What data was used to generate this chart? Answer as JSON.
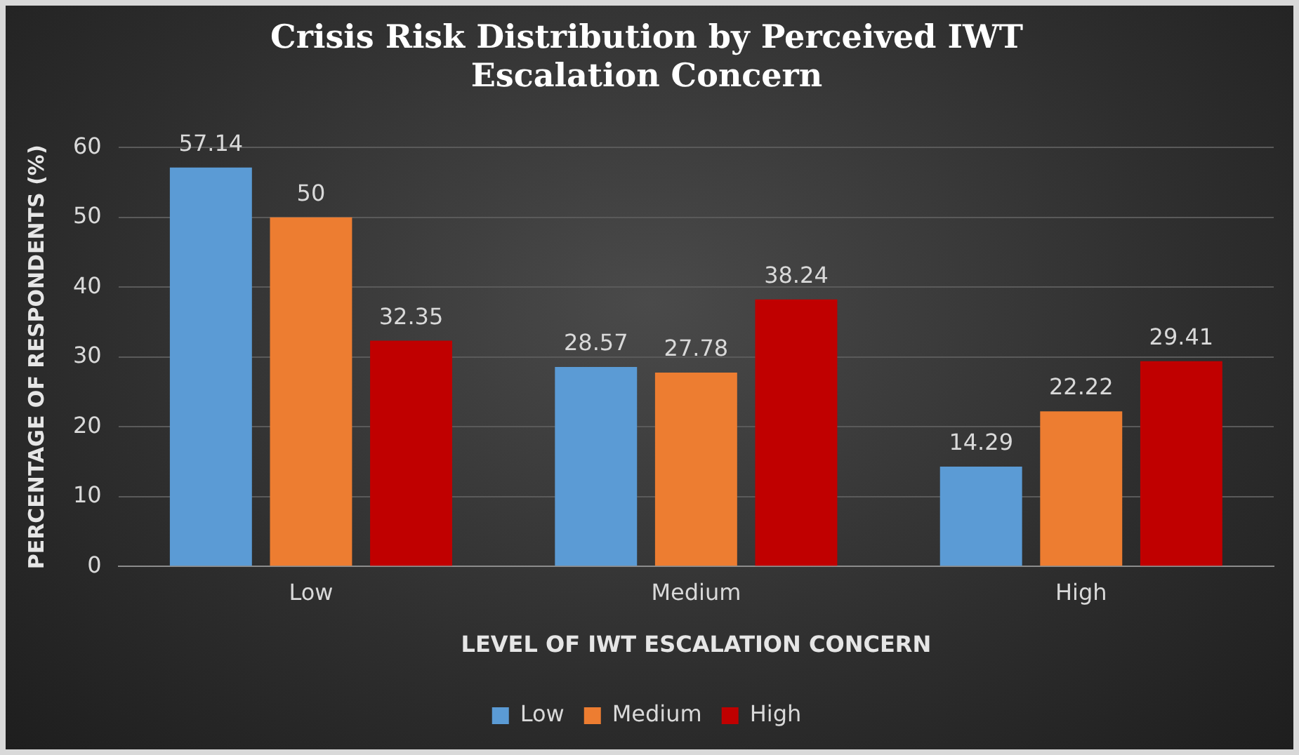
{
  "chart_data": {
    "type": "bar",
    "title": "Crisis Risk Distribution by Perceived IWT Escalation Concern",
    "xlabel": "LEVEL OF IWT ESCALATION CONCERN",
    "ylabel": "PERCENTAGE OF RESPONDENTS (%)",
    "categories": [
      "Low",
      "Medium",
      "High"
    ],
    "series": [
      {
        "name": "Low",
        "color": "#5b9bd5",
        "values": [
          57.14,
          28.57,
          14.29
        ]
      },
      {
        "name": "Medium",
        "color": "#ed7d31",
        "values": [
          50,
          27.78,
          22.22
        ]
      },
      {
        "name": "High",
        "color": "#c00000",
        "values": [
          32.35,
          38.24,
          29.41
        ]
      }
    ],
    "ylim": [
      0,
      60
    ],
    "yticks": [
      0,
      10,
      20,
      30,
      40,
      50,
      60
    ],
    "grid": "y",
    "legend": "bottom",
    "data_labels": true
  }
}
